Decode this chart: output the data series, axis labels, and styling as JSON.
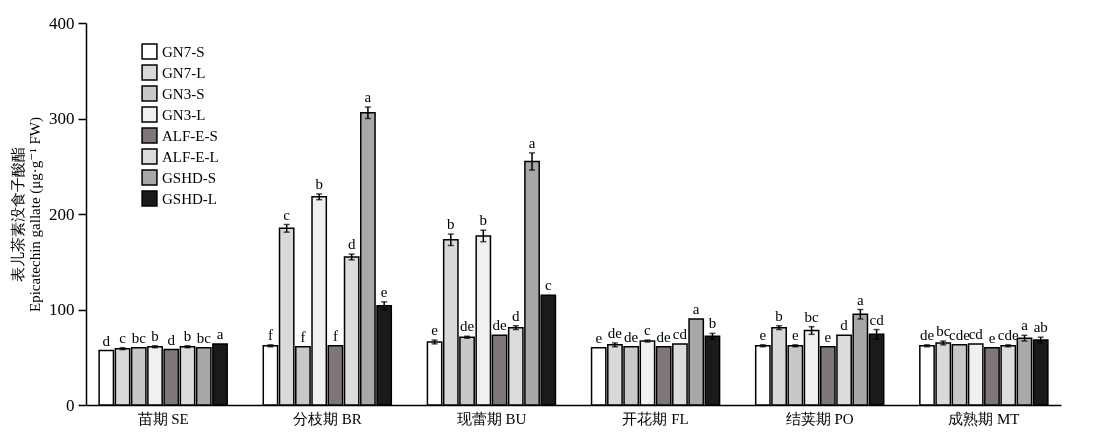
{
  "chart_data": {
    "type": "bar",
    "ylabel": "表儿茶素没食子酸酯\nEpicatechin gallate (μg·g⁻¹ FW)",
    "categories": [
      "苗期 SE",
      "分枝期 BR",
      "现蕾期 BU",
      "开花期 FL",
      "结荚期 PO",
      "成熟期 MT"
    ],
    "ylim": [
      0,
      400
    ],
    "yticks": [
      0,
      100,
      200,
      300,
      400
    ],
    "grid": false,
    "legend": "top left",
    "series": [
      {
        "name": "GN7-S",
        "color": "#ffffff",
        "values": [
          57,
          62,
          66,
          60,
          62,
          62
        ],
        "errors": [
          null,
          1,
          2,
          null,
          1,
          1
        ],
        "value_labels": [
          "d",
          "f",
          "e",
          "e",
          "e",
          "de"
        ]
      },
      {
        "name": "GN7-L",
        "color": "#d9d9d9",
        "values": [
          59,
          185,
          173,
          63,
          81,
          65
        ],
        "errors": [
          1,
          4,
          6,
          2,
          2,
          2
        ],
        "value_labels": [
          "c",
          "c",
          "b",
          "de",
          "b",
          "bc"
        ]
      },
      {
        "name": "GN3-S",
        "color": "#c8c8c8",
        "values": [
          60,
          61,
          71,
          61,
          62,
          63
        ],
        "errors": [
          null,
          null,
          1,
          null,
          1,
          null
        ],
        "value_labels": [
          "bc",
          "f",
          "de",
          "de",
          "e",
          "cde"
        ]
      },
      {
        "name": "GN3-L",
        "color": "#f0f0f0",
        "values": [
          61,
          218,
          177,
          67,
          78,
          64
        ],
        "errors": [
          1,
          3,
          6,
          1,
          4,
          null
        ],
        "value_labels": [
          "b",
          "b",
          "b",
          "c",
          "bc",
          "cd"
        ]
      },
      {
        "name": "ALF-E-S",
        "color": "#7f7777",
        "values": [
          58,
          62,
          73,
          61,
          61,
          60
        ],
        "errors": [
          null,
          null,
          null,
          null,
          null,
          null
        ],
        "value_labels": [
          "d",
          "f",
          "de",
          "de",
          "e",
          "e"
        ]
      },
      {
        "name": "ALF-E-L",
        "color": "#dcdcdc",
        "values": [
          61,
          155,
          81,
          64,
          73,
          62
        ],
        "errors": [
          1,
          3,
          2,
          null,
          null,
          1
        ],
        "value_labels": [
          "b",
          "d",
          "d",
          "cd",
          "d",
          "cde"
        ]
      },
      {
        "name": "GSHD-S",
        "color": "#a8a8a8",
        "values": [
          60,
          306,
          255,
          90,
          95,
          70
        ],
        "errors": [
          null,
          6,
          9,
          null,
          5,
          3
        ],
        "value_labels": [
          "bc",
          "a",
          "a",
          "a",
          "a",
          "a"
        ]
      },
      {
        "name": "GSHD-L",
        "color": "#1a1a1a",
        "values": [
          64,
          104,
          115,
          72,
          74,
          68
        ],
        "errors": [
          null,
          4,
          null,
          3,
          5,
          3
        ],
        "value_labels": [
          "a",
          "e",
          "c",
          "b",
          "cd",
          "ab"
        ]
      }
    ]
  }
}
